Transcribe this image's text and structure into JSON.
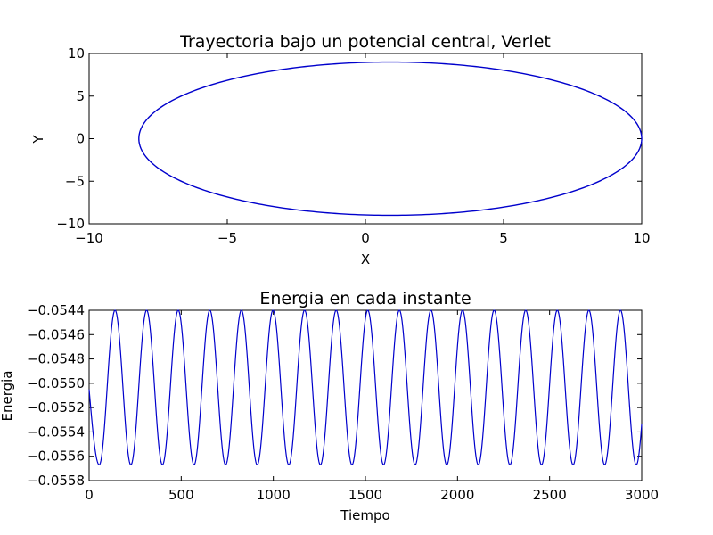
{
  "chart_data": [
    {
      "type": "line",
      "title": "Trayectoria bajo un potencial central, Verlet",
      "xlabel": "X",
      "ylabel": "Y",
      "xlim": [
        -10,
        10
      ],
      "ylim": [
        -10,
        10
      ],
      "xticks": [
        -10,
        -5,
        0,
        5,
        10
      ],
      "yticks": [
        -10,
        -5,
        0,
        5,
        10
      ],
      "xtick_labels": [
        "−10",
        "−5",
        "0",
        "5",
        "10"
      ],
      "ytick_labels": [
        "−10",
        "−5",
        "0",
        "5",
        "10"
      ],
      "grid": false,
      "line_color": "#0000cc",
      "series": [
        {
          "orbit_center_x": 0.9,
          "orbit_center_y": 0.0,
          "orbit_semi_axis_x": 9.1,
          "orbit_semi_axis_y": 9.0,
          "x_min": -8.2,
          "x_max": 10.0,
          "y_min": -9.0,
          "y_max": 9.0
        }
      ]
    },
    {
      "type": "line",
      "title": "Energia en cada instante",
      "xlabel": "Tiempo",
      "ylabel": "Energia",
      "xlim": [
        0,
        3000
      ],
      "ylim": [
        -0.0558,
        -0.0544
      ],
      "xticks": [
        0,
        500,
        1000,
        1500,
        2000,
        2500,
        3000
      ],
      "yticks": [
        -0.0558,
        -0.0556,
        -0.0554,
        -0.0552,
        -0.055,
        -0.0548,
        -0.0546,
        -0.0544
      ],
      "xtick_labels": [
        "0",
        "500",
        "1000",
        "1500",
        "2000",
        "2500",
        "3000"
      ],
      "ytick_labels": [
        "−0.0558",
        "−0.0556",
        "−0.0554",
        "−0.0552",
        "−0.0550",
        "−0.0548",
        "−0.0546",
        "−0.0544"
      ],
      "grid": false,
      "line_color": "#0000cc",
      "series": [
        {
          "energy_max": -0.0544,
          "energy_min": -0.05567,
          "start_value": -0.05505,
          "first_minimum_time": 55,
          "oscillation_period": 171.5
        }
      ]
    }
  ]
}
